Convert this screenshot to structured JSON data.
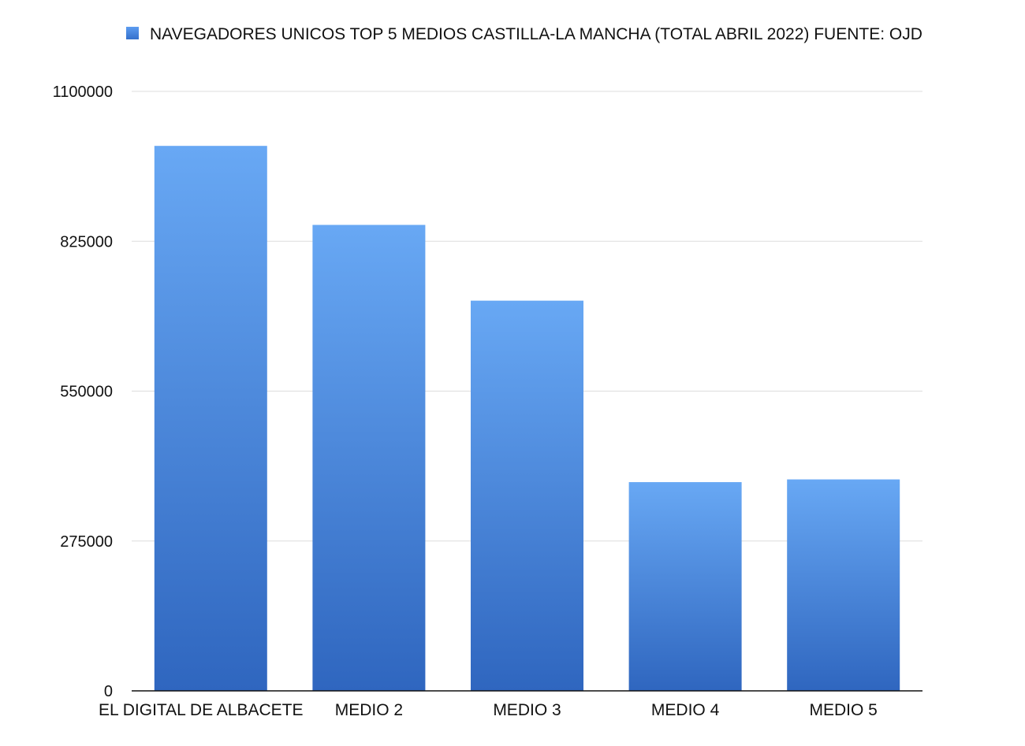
{
  "chart_data": {
    "type": "bar",
    "categories": [
      "EL DIGITAL DE ALBACETE",
      "MEDIO 2",
      "MEDIO 3",
      "MEDIO 4",
      "MEDIO 5"
    ],
    "series": [
      {
        "name": "NAVEGADORES UNICOS TOP 5 MEDIOS CASTILLA-LA MANCHA (TOTAL ABRIL 2022) FUENTE: OJD",
        "values": [
          1000000,
          855000,
          716000,
          383000,
          388000
        ],
        "color": "#4a8ae6"
      }
    ],
    "title": "",
    "xlabel": "",
    "ylabel": "",
    "ylim": [
      0,
      1100000
    ],
    "yticks": [
      0,
      275000,
      550000,
      825000,
      1100000
    ],
    "ytick_labels": [
      "0",
      "275000",
      "550000",
      "825000",
      "1100000"
    ],
    "grid": true,
    "legend": "top",
    "colors": {
      "bar_top": "#68a8f4",
      "bar_bottom": "#2f66bf",
      "legend_swatch": "#3d7ddb"
    }
  }
}
